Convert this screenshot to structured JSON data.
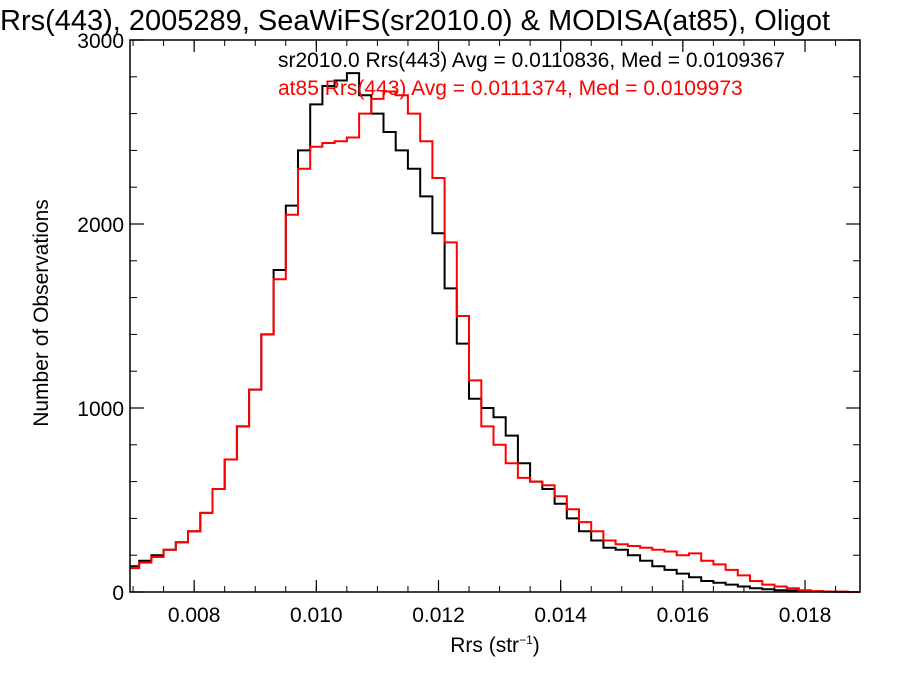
{
  "chart_data": {
    "type": "line",
    "title": "Rrs(443), 2005289, SeaWiFS(sr2010.0) & MODISA(at85), Oligot",
    "xlabel_main": "Rrs (str",
    "xlabel_sup": "−1",
    "xlabel_end": ")",
    "ylabel": "Number of Observations",
    "xlim": [
      0.00695,
      0.0189
    ],
    "ylim": [
      0,
      3000
    ],
    "x_ticks": [
      "0.008",
      "0.010",
      "0.012",
      "0.014",
      "0.016",
      "0.018"
    ],
    "y_ticks": [
      "0",
      "1000",
      "2000",
      "3000"
    ],
    "grid": false,
    "series": [
      {
        "name": "sr2010.0",
        "color": "#000000",
        "stat_label": "sr2010.0 Rrs(443) Avg = 0.0110836, Med = 0.0109367",
        "x": [
          0.007,
          0.0072,
          0.0074,
          0.0076,
          0.0078,
          0.008,
          0.0082,
          0.0084,
          0.0086,
          0.0088,
          0.009,
          0.0092,
          0.0094,
          0.0096,
          0.0098,
          0.01,
          0.0102,
          0.0104,
          0.0106,
          0.0108,
          0.011,
          0.0112,
          0.0114,
          0.0116,
          0.0118,
          0.012,
          0.0122,
          0.0124,
          0.0126,
          0.0128,
          0.013,
          0.0132,
          0.0134,
          0.0136,
          0.0138,
          0.014,
          0.0142,
          0.0144,
          0.0146,
          0.0148,
          0.015,
          0.0152,
          0.0154,
          0.0156,
          0.0158,
          0.016,
          0.0162,
          0.0164,
          0.0166,
          0.0168,
          0.017,
          0.0172,
          0.0174,
          0.0176,
          0.0178,
          0.018,
          0.0182,
          0.0184,
          0.0186,
          0.0188
        ],
        "values": [
          140,
          170,
          200,
          230,
          270,
          330,
          430,
          560,
          720,
          900,
          1100,
          1400,
          1750,
          2100,
          2400,
          2650,
          2750,
          2780,
          2820,
          2700,
          2600,
          2500,
          2400,
          2300,
          2150,
          1950,
          1650,
          1350,
          1050,
          1000,
          950,
          850,
          700,
          600,
          560,
          480,
          400,
          330,
          280,
          240,
          230,
          200,
          170,
          140,
          120,
          100,
          80,
          60,
          50,
          40,
          30,
          20,
          15,
          10,
          8,
          5,
          3,
          2,
          1,
          0
        ]
      },
      {
        "name": "at85",
        "color": "#ff0000",
        "stat_label": "at85 Rrs(443) Avg = 0.0111374, Med = 0.0109973",
        "x": [
          0.007,
          0.0072,
          0.0074,
          0.0076,
          0.0078,
          0.008,
          0.0082,
          0.0084,
          0.0086,
          0.0088,
          0.009,
          0.0092,
          0.0094,
          0.0096,
          0.0098,
          0.01,
          0.0102,
          0.0104,
          0.0106,
          0.0108,
          0.011,
          0.0112,
          0.0114,
          0.0116,
          0.0118,
          0.012,
          0.0122,
          0.0124,
          0.0126,
          0.0128,
          0.013,
          0.0132,
          0.0134,
          0.0136,
          0.0138,
          0.014,
          0.0142,
          0.0144,
          0.0146,
          0.0148,
          0.015,
          0.0152,
          0.0154,
          0.0156,
          0.0158,
          0.016,
          0.0162,
          0.0164,
          0.0166,
          0.0168,
          0.017,
          0.0172,
          0.0174,
          0.0176,
          0.0178,
          0.018,
          0.0182,
          0.0184,
          0.0186,
          0.0188
        ],
        "values": [
          130,
          160,
          190,
          230,
          270,
          330,
          430,
          560,
          720,
          900,
          1100,
          1400,
          1700,
          2050,
          2300,
          2420,
          2440,
          2450,
          2470,
          2600,
          2680,
          2720,
          2700,
          2600,
          2450,
          2250,
          1900,
          1500,
          1150,
          900,
          800,
          700,
          620,
          600,
          580,
          520,
          450,
          380,
          330,
          280,
          260,
          250,
          240,
          230,
          220,
          200,
          210,
          170,
          150,
          120,
          90,
          60,
          40,
          30,
          20,
          10,
          5,
          2,
          1,
          0
        ]
      }
    ]
  }
}
